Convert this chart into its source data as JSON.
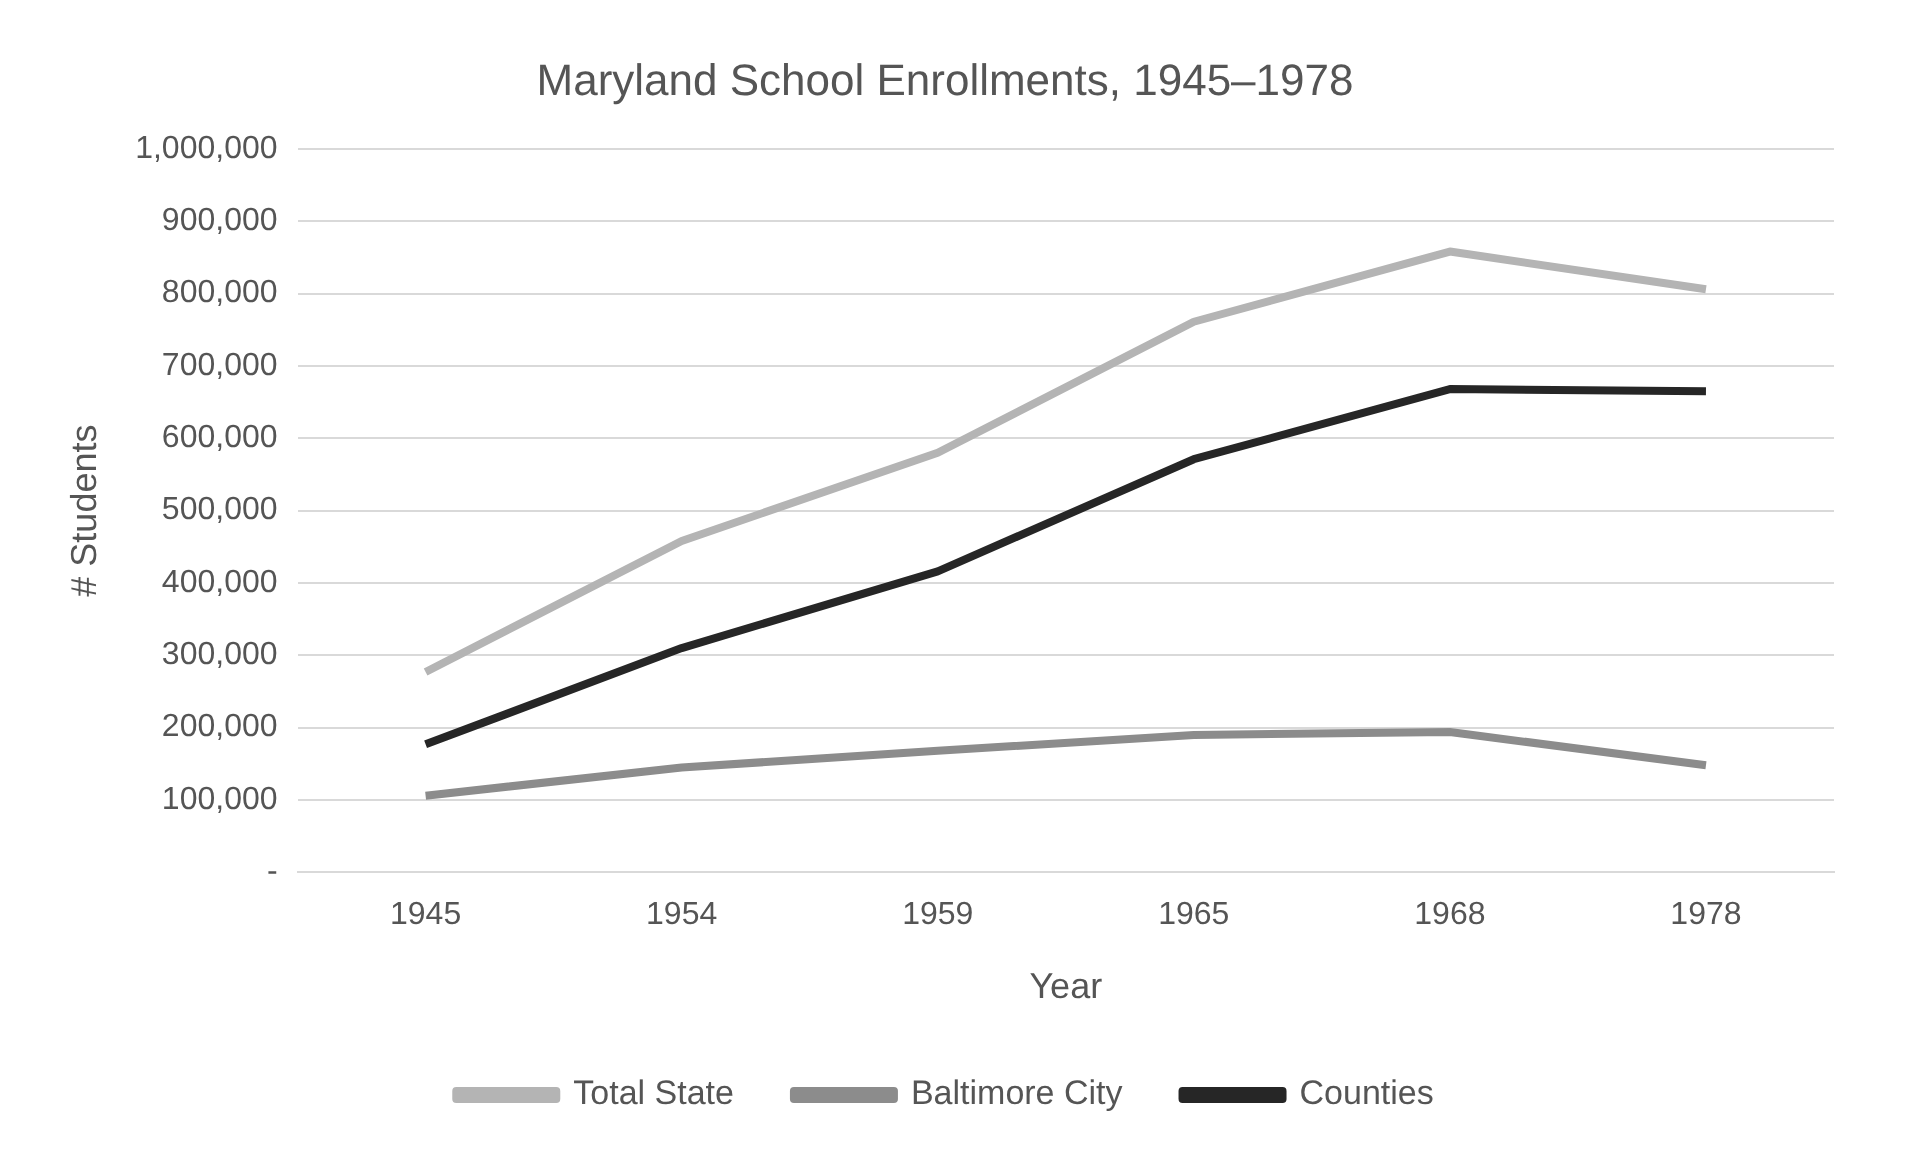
{
  "chart_data": {
    "type": "line",
    "title": "Maryland School Enrollments, 1945–1978",
    "xlabel": "Year",
    "ylabel": "# Students",
    "categories": [
      "1945",
      "1954",
      "1959",
      "1965",
      "1968",
      "1978"
    ],
    "series": [
      {
        "name": "Total State",
        "color": "#b4b4b4",
        "values": [
          277000,
          458000,
          580000,
          761000,
          858000,
          806000
        ]
      },
      {
        "name": "Baltimore City",
        "color": "#8c8c8c",
        "values": [
          106000,
          145000,
          168000,
          190000,
          194000,
          148000
        ]
      },
      {
        "name": "Counties",
        "color": "#262626",
        "values": [
          177000,
          310000,
          416000,
          571000,
          668000,
          665000
        ]
      }
    ],
    "ylim": [
      0,
      1000000
    ],
    "yticks": [
      {
        "value": 0,
        "label": "-"
      },
      {
        "value": 100000,
        "label": "100,000"
      },
      {
        "value": 200000,
        "label": "200,000"
      },
      {
        "value": 300000,
        "label": "300,000"
      },
      {
        "value": 400000,
        "label": "400,000"
      },
      {
        "value": 500000,
        "label": "500,000"
      },
      {
        "value": 600000,
        "label": "600,000"
      },
      {
        "value": 700000,
        "label": "700,000"
      },
      {
        "value": 800000,
        "label": "800,000"
      },
      {
        "value": 900000,
        "label": "900,000"
      },
      {
        "value": 1000000,
        "label": "1,000,000"
      }
    ],
    "grid": "y",
    "legend": "bottom",
    "marker": "none",
    "line_style": "solid"
  }
}
